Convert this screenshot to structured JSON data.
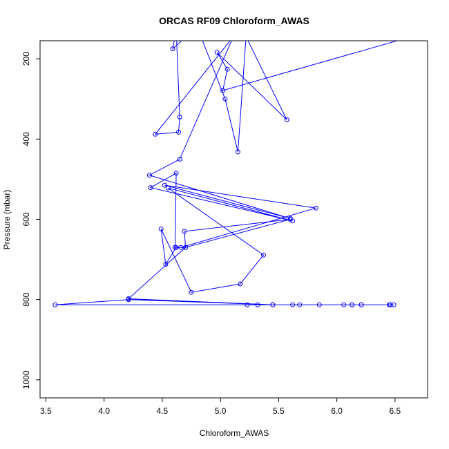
{
  "chart_data": {
    "type": "line",
    "title": "ORCAS RF09 Chloroform_AWAS",
    "xlabel": "Chloroform_AWAS",
    "ylabel": "Pressure (mbar)",
    "xlim": [
      3.45,
      6.78
    ],
    "ylim": [
      1045,
      155
    ],
    "y_inverted": true,
    "xticks": [
      3.5,
      4.0,
      4.5,
      5.0,
      5.5,
      6.0,
      6.5
    ],
    "xtick_labels": [
      "3.5",
      "4.0",
      "4.5",
      "5.0",
      "5.5",
      "6.0",
      "6.5"
    ],
    "yticks": [
      200,
      400,
      600,
      800,
      1000
    ],
    "ytick_labels": [
      "200",
      "400",
      "600",
      "800",
      "1000"
    ],
    "grid": false,
    "color": "#0000ff",
    "series": [
      {
        "x": [
          6.7,
          5.02,
          5.06,
          4.97,
          5.57,
          5.22,
          5.15,
          5.04,
          4.8,
          4.59,
          4.62,
          4.65,
          4.64,
          4.44,
          5.11,
          4.65,
          4.39,
          5.6,
          4.52,
          5.82,
          4.66,
          4.61,
          4.62,
          4.4,
          5.62,
          4.55,
          5.37,
          5.17,
          4.75,
          4.49,
          4.53,
          4.62,
          4.7,
          4.69,
          5.6,
          4.7,
          4.21,
          5.45,
          4.21,
          3.58,
          5.23,
          5.32,
          5.45,
          5.62,
          5.68,
          5.85,
          6.06,
          6.13,
          6.21,
          6.46,
          6.49,
          6.45,
          6.21,
          6.13
        ],
        "y": [
          140,
          279,
          226,
          184,
          352,
          145,
          432,
          300,
          120,
          175,
          130,
          345,
          383,
          388,
          145,
          450,
          490,
          598,
          515,
          572,
          670,
          670,
          485,
          521,
          604,
          522,
          689,
          761,
          782,
          624,
          712,
          670,
          670,
          630,
          600,
          670,
          798,
          813,
          800,
          813,
          813,
          813,
          813,
          813,
          813,
          813,
          813,
          813,
          813,
          813,
          813,
          813,
          813,
          813
        ]
      }
    ]
  }
}
